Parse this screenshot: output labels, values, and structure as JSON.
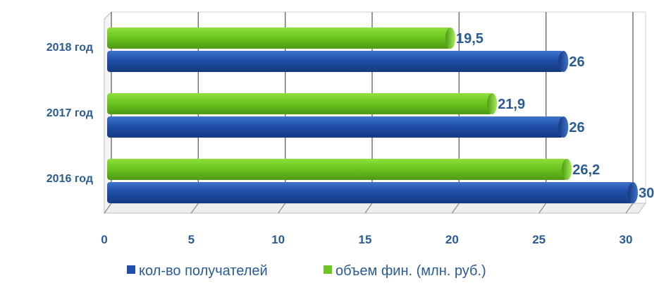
{
  "chart_data": {
    "type": "bar",
    "orientation": "horizontal",
    "categories": [
      "2018 год",
      "2017 год",
      "2016 год"
    ],
    "series": [
      {
        "name": "объем фин. (млн. руб.)",
        "color": "#6cc520",
        "values": [
          19.5,
          21.9,
          26.2
        ],
        "labels": [
          "19,5",
          "21,9",
          "26,2"
        ]
      },
      {
        "name": "кол-во получателей",
        "color": "#1f4fa8",
        "values": [
          26,
          26,
          30
        ],
        "labels": [
          "26",
          "26",
          "30"
        ]
      }
    ],
    "x_ticks": [
      "0",
      "5",
      "10",
      "15",
      "20",
      "25",
      "30"
    ],
    "xlim": [
      0,
      30
    ],
    "grid": "vertical",
    "legend_position": "bottom",
    "title": "",
    "xlabel": "",
    "ylabel": ""
  }
}
